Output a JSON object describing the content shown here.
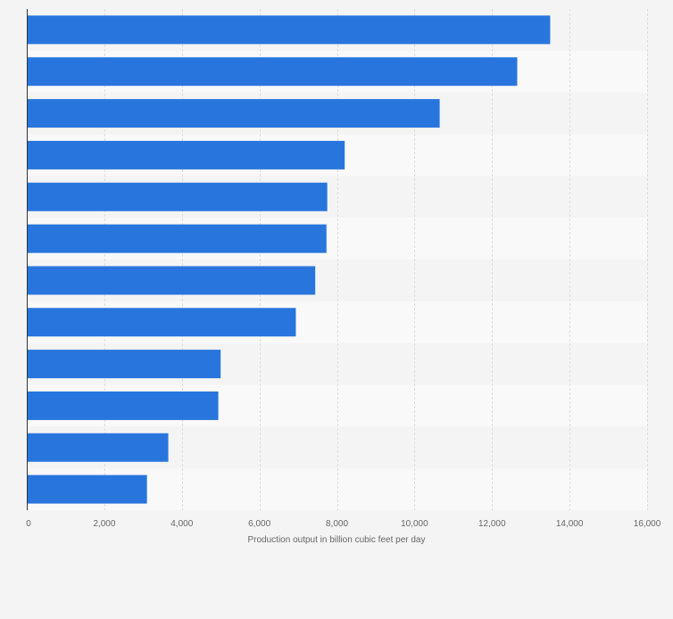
{
  "colors": {
    "bar": "#2876dd",
    "band_light": "#f9f9f9",
    "band_dark": "#f4f4f4",
    "grid": "#dcdcdc",
    "axis": "#333333",
    "tick_text": "#666666",
    "page_bg": "#f4f4f4"
  },
  "chart_data": {
    "type": "bar",
    "orientation": "horizontal",
    "title": "",
    "xlabel": "Production output in billion cubic feet per day",
    "ylabel": "",
    "xlim": [
      0,
      16000
    ],
    "xticks": [
      0,
      2000,
      4000,
      6000,
      8000,
      10000,
      12000,
      14000,
      16000
    ],
    "xtick_labels": [
      "0",
      "2,000",
      "4,000",
      "6,000",
      "8,000",
      "10,000",
      "12,000",
      "14,000",
      "16,000"
    ],
    "grid": true,
    "legend": "none",
    "categories": [
      "",
      "",
      "",
      "",
      "",
      "",
      "",
      "",
      "",
      "",
      "",
      ""
    ],
    "values": [
      13500,
      12650,
      10650,
      8200,
      7750,
      7730,
      7440,
      6940,
      5000,
      4940,
      3650,
      3100
    ]
  }
}
